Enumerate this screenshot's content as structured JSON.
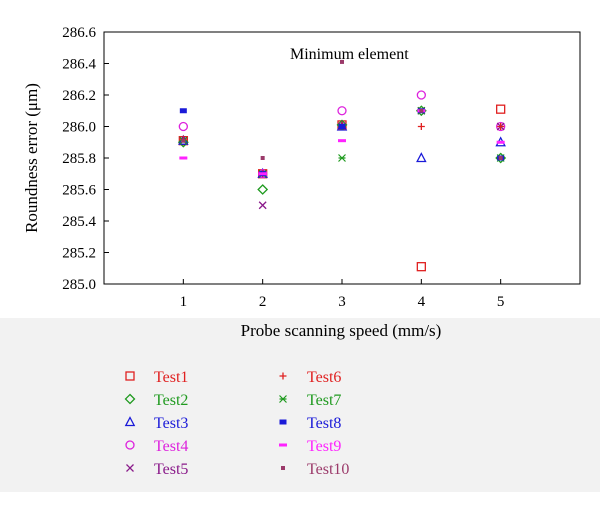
{
  "chart_data": {
    "type": "scatter",
    "title": "",
    "annotation": "Minimum element",
    "xlabel": "Probe scanning speed (mm/s)",
    "ylabel": "Roundness error (μm)",
    "x": [
      1,
      2,
      3,
      4,
      5
    ],
    "x_ticks": [
      "1",
      "2",
      "3",
      "4",
      "5"
    ],
    "y_ticks": [
      "285.0",
      "285.2",
      "285.4",
      "285.6",
      "285.8",
      "286.0",
      "286.2",
      "286.4",
      "286.6"
    ],
    "xlim": [
      0,
      6
    ],
    "ylim": [
      285.0,
      286.6
    ],
    "grid": false,
    "legend_position": "bottom",
    "series": [
      {
        "name": "Test1",
        "marker": "square",
        "color": "#e02020",
        "values": [
          285.91,
          285.7,
          286.01,
          285.11,
          286.11
        ]
      },
      {
        "name": "Test2",
        "marker": "diamond",
        "color": "#1f9a1f",
        "values": [
          285.9,
          285.6,
          286.01,
          286.1,
          285.8
        ]
      },
      {
        "name": "Test3",
        "marker": "triangle",
        "color": "#1a1ad8",
        "values": [
          285.91,
          285.7,
          286.0,
          285.8,
          285.9
        ]
      },
      {
        "name": "Test4",
        "marker": "circle",
        "color": "#dd22dd",
        "values": [
          286.0,
          285.7,
          286.1,
          286.2,
          286.0
        ]
      },
      {
        "name": "Test5",
        "marker": "x",
        "color": "#8a1a8a",
        "values": [
          285.91,
          285.5,
          286.0,
          286.1,
          286.0
        ]
      },
      {
        "name": "Test6",
        "marker": "plus",
        "color": "#e02020",
        "values": [
          285.92,
          285.7,
          286.01,
          286.0,
          286.0
        ]
      },
      {
        "name": "Test7",
        "marker": "xplus",
        "color": "#1f9a1f",
        "values": [
          285.91,
          285.7,
          285.8,
          286.1,
          285.8
        ]
      },
      {
        "name": "Test8",
        "marker": "bar",
        "color": "#1a1ad8",
        "values": [
          286.1,
          285.7,
          286.0,
          286.1,
          285.8
        ]
      },
      {
        "name": "Test9",
        "marker": "dash",
        "color": "#ff22ff",
        "values": [
          285.8,
          285.7,
          285.91,
          286.1,
          285.9
        ]
      },
      {
        "name": "Test10",
        "marker": "smallsquare",
        "color": "#9b3a6a",
        "values": [
          285.91,
          285.8,
          286.41,
          286.1,
          285.8
        ]
      }
    ]
  }
}
